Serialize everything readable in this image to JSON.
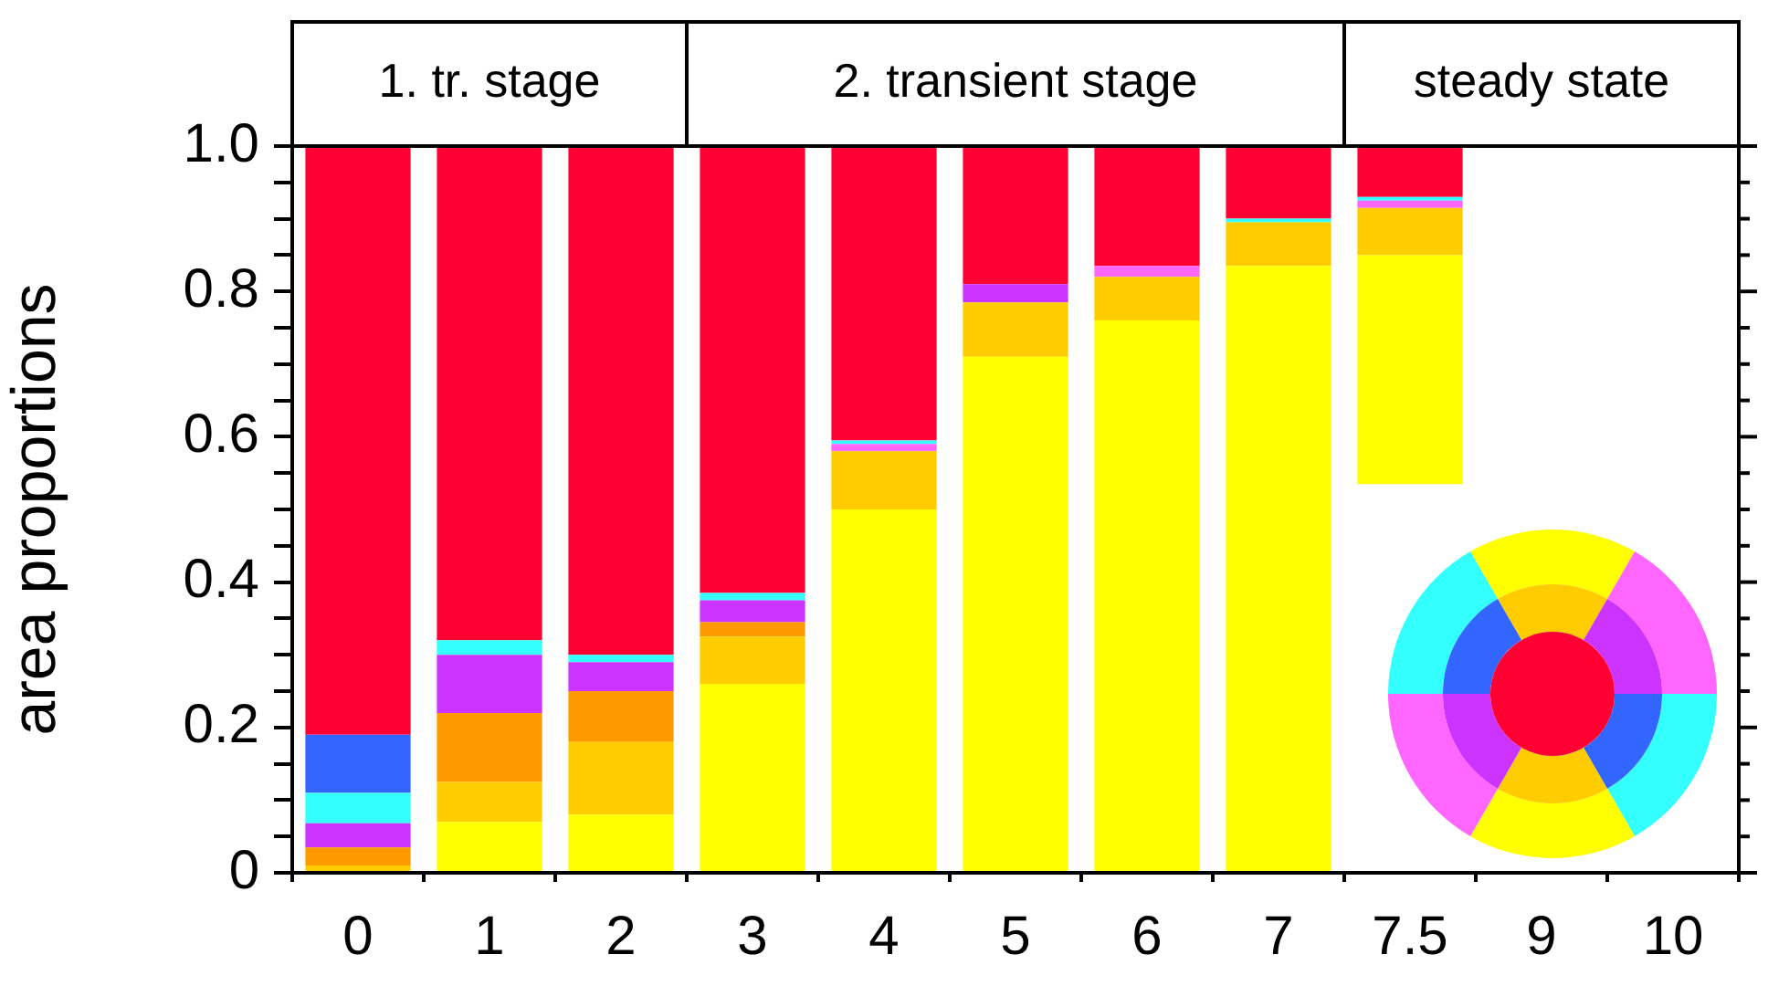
{
  "chart_data": {
    "type": "bar",
    "ylabel": "area proportions",
    "categories": [
      "0",
      "1",
      "2",
      "3",
      "4",
      "5",
      "6",
      "7",
      "7.5",
      "9",
      "10"
    ],
    "series": [
      {
        "color": "#ffff00",
        "values": [
          null,
          0.07,
          0.08,
          0.26,
          0.5,
          0.71,
          0.76,
          0.835,
          0.315,
          null,
          null
        ],
        "base": [
          null,
          0,
          0,
          0,
          0,
          0,
          0,
          0,
          0.535,
          null,
          null
        ]
      },
      {
        "color": "#ffcc00",
        "values": [
          0.01,
          0.055,
          0.1,
          0.065,
          0.08,
          0.075,
          0.06,
          0.06,
          0.065,
          null,
          null
        ],
        "base": [
          0,
          0.07,
          0.08,
          0.26,
          0.5,
          0.71,
          0.76,
          0.835,
          0.85,
          null,
          null
        ]
      },
      {
        "color": "#ff9900",
        "values": [
          0.025,
          0.095,
          0.07,
          0.02,
          null,
          null,
          null,
          null,
          null,
          null,
          null
        ],
        "base": [
          0.01,
          0.125,
          0.18,
          0.325,
          null,
          null,
          null,
          null,
          null,
          null,
          null
        ]
      },
      {
        "color": "#cc33ff",
        "values": [
          0.033,
          0.08,
          0.04,
          0.03,
          null,
          0.025,
          null,
          null,
          null,
          null,
          null
        ],
        "base": [
          0.035,
          0.22,
          0.25,
          0.345,
          null,
          0.785,
          null,
          null,
          null,
          null,
          null
        ]
      },
      {
        "color": "#ff66ff",
        "values": [
          null,
          null,
          null,
          null,
          0.01,
          null,
          0.015,
          null,
          0.01,
          null,
          null
        ],
        "base": [
          null,
          null,
          null,
          null,
          0.58,
          null,
          0.82,
          null,
          0.915,
          null,
          null
        ]
      },
      {
        "color": "#33ffff",
        "values": [
          0.042,
          0.02,
          0.01,
          0.01,
          0.005,
          null,
          null,
          0.005,
          0.005,
          null,
          null
        ],
        "base": [
          0.068,
          0.3,
          0.29,
          0.375,
          0.59,
          null,
          null,
          0.895,
          0.925,
          null,
          null
        ]
      },
      {
        "color": "#3366ff",
        "values": [
          0.08,
          null,
          null,
          null,
          null,
          null,
          null,
          null,
          null,
          null,
          null
        ],
        "base": [
          0.11,
          null,
          null,
          null,
          null,
          null,
          null,
          null,
          null,
          null,
          null
        ]
      },
      {
        "color": "#ff0033",
        "values": [
          0.81,
          0.68,
          0.7,
          0.615,
          0.405,
          0.19,
          0.165,
          0.1,
          0.07,
          null,
          null
        ],
        "base": [
          0.19,
          0.32,
          0.3,
          0.385,
          0.595,
          0.81,
          0.835,
          0.9,
          0.93,
          null,
          null
        ]
      }
    ],
    "ylim": [
      0,
      1
    ],
    "yticks": [
      0,
      {
        "value": 0.05,
        "label": null
      },
      {
        "value": 0.1,
        "label": null
      },
      {
        "value": 0.15,
        "label": null
      },
      0.2,
      {
        "value": 0.25,
        "label": null
      },
      {
        "value": 0.3,
        "label": null
      },
      {
        "value": 0.35,
        "label": null
      },
      0.4,
      {
        "value": 0.45,
        "label": null
      },
      {
        "value": 0.5,
        "label": null
      },
      {
        "value": 0.55,
        "label": null
      },
      0.6,
      {
        "value": 0.65,
        "label": null
      },
      {
        "value": 0.7,
        "label": null
      },
      {
        "value": 0.75,
        "label": null
      },
      0.8,
      {
        "value": 0.85,
        "label": null
      },
      {
        "value": 0.9,
        "label": null
      },
      {
        "value": 0.95,
        "label": null
      },
      {
        "value": 1,
        "label": "1.0"
      }
    ],
    "annotations": [
      "1. tr. stage",
      "2. transient stage",
      "steady state"
    ],
    "grid": false,
    "legend": false
  }
}
